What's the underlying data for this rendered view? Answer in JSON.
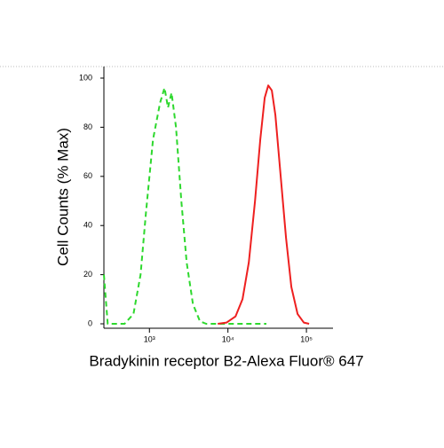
{
  "chart_data": {
    "type": "line",
    "y_label": "Cell Counts (% Max)",
    "x_label": "Bradykinin receptor B2-Alexa Fluor® 647",
    "xlog": true,
    "xlim": [
      263,
      218000
    ],
    "xticks": [
      {
        "value": 1000,
        "label": "10³"
      },
      {
        "value": 10000,
        "label": "10⁴"
      },
      {
        "value": 100000,
        "label": "10⁵"
      }
    ],
    "ylim": [
      -1.8,
      104.7
    ],
    "yticks": [
      0,
      20,
      40,
      60,
      80,
      100
    ],
    "series": [
      {
        "color": "#2ed82e",
        "dashed": true,
        "x": [
          263,
          294,
          483,
          626,
          771,
          901,
          1110,
          1366,
          1556,
          1726,
          1914,
          2181,
          2552,
          2983,
          3581,
          4406,
          5284,
          30900
        ],
        "values": [
          20,
          0,
          0,
          4,
          20,
          45,
          75,
          90,
          96,
          88,
          94,
          80,
          50,
          25,
          8,
          1,
          0,
          0
        ]
      },
      {
        "color": "#ee2020",
        "dashed": false,
        "x": [
          7410,
          9610,
          12470,
          15350,
          18450,
          22130,
          25830,
          29420,
          32660,
          36220,
          40230,
          47000,
          54950,
          64270,
          77050,
          92450,
          108100
        ],
        "values": [
          0,
          0.5,
          3,
          10,
          25,
          50,
          75,
          92,
          97,
          95,
          85,
          60,
          35,
          15,
          4,
          0.5,
          0
        ]
      }
    ]
  }
}
